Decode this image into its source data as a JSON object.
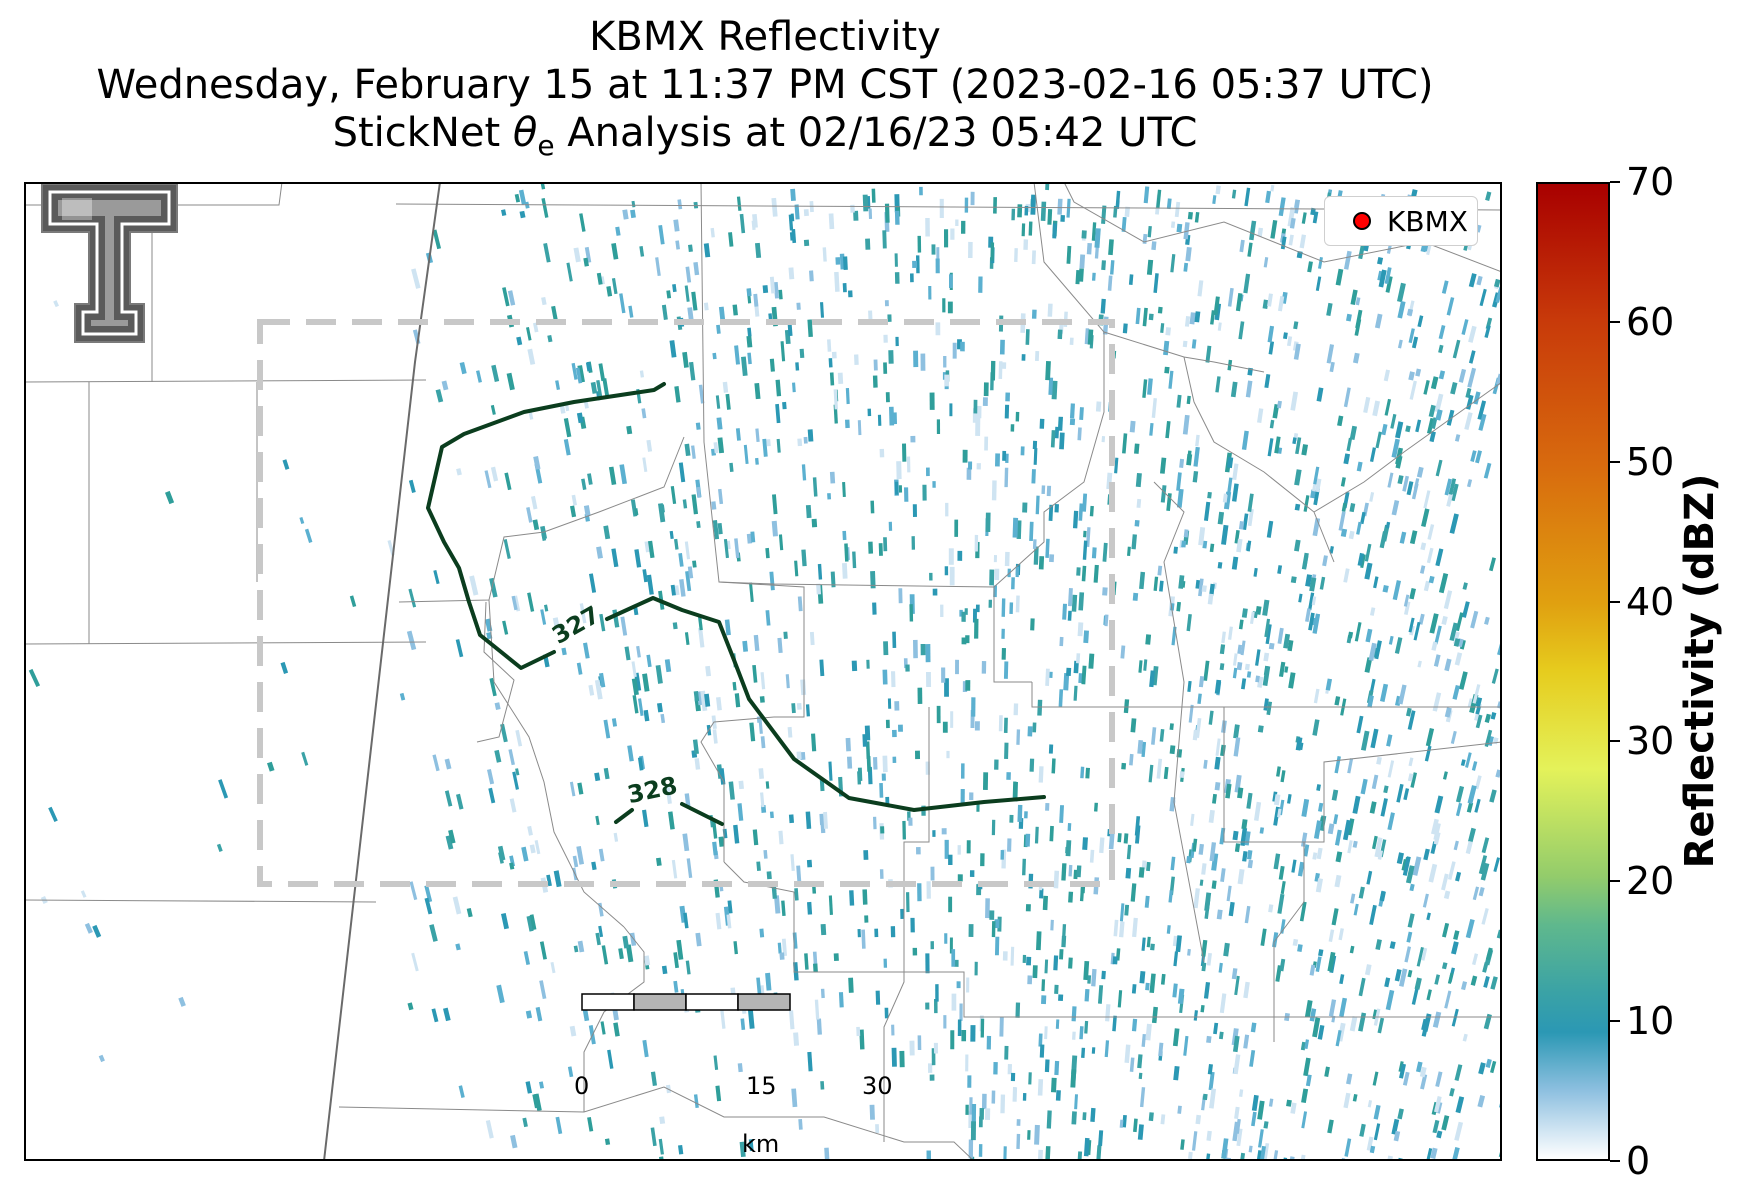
{
  "title": {
    "line1": "KBMX Reflectivity",
    "line2": "Wednesday, February 15 at 11:37 PM CST (2023-02-16 05:37 UTC)",
    "line3_prefix": "StickNet ",
    "line3_symbol": "θ",
    "line3_subscript": "e",
    "line3_suffix": " Analysis at 02/16/23 05:42 UTC"
  },
  "legend": {
    "marker_color": "#ff0000",
    "label": "KBMX"
  },
  "colorbar": {
    "label": "Reflectivity (dBZ)",
    "min": 0,
    "max": 70,
    "ticks": [
      "0",
      "10",
      "20",
      "30",
      "40",
      "50",
      "60",
      "70"
    ]
  },
  "contours": {
    "color": "#0b3d1e",
    "labels": [
      "327",
      "328"
    ]
  },
  "scale_bar": {
    "ticks": [
      "0",
      "15",
      "30"
    ],
    "unit": "km"
  },
  "analysis_box": {
    "style": "dashed",
    "color": "#c8c8c8"
  },
  "radar_echo_color": "#2b98b4"
}
